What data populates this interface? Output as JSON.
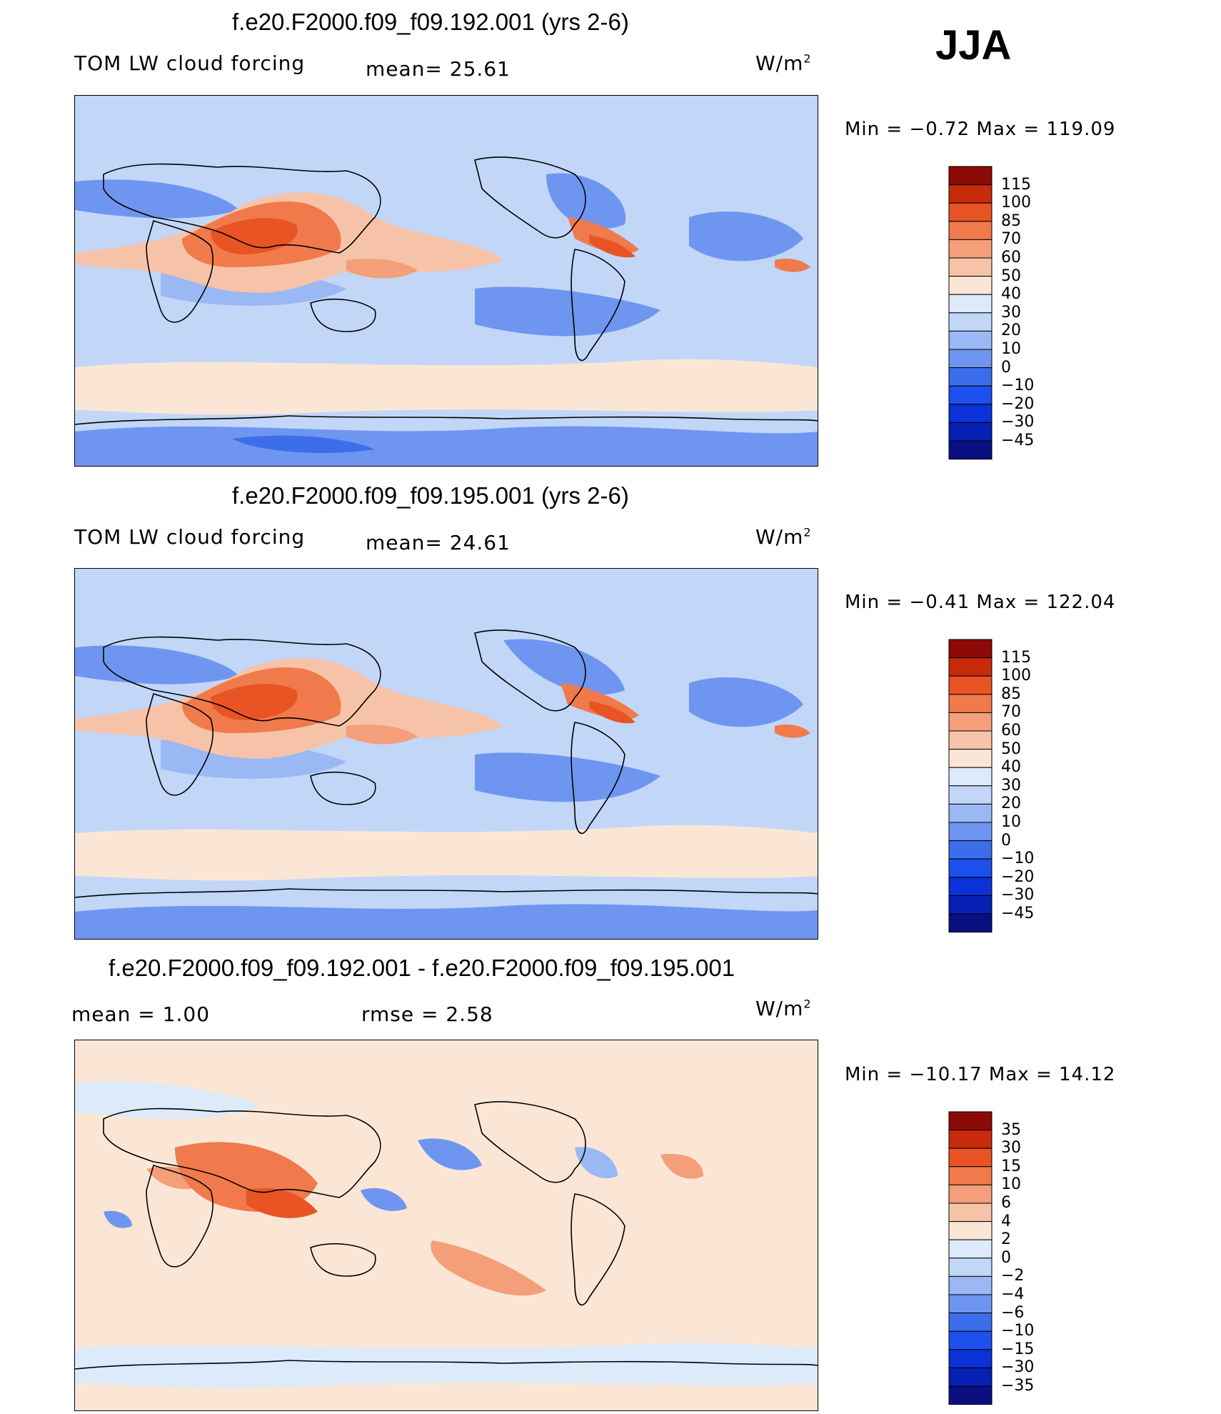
{
  "season": "JJA",
  "panels": [
    {
      "title": "f.e20.F2000.f09_f09.192.001 (yrs 2-6)",
      "variable": "TOM LW cloud forcing",
      "stat_text": "mean=   25.61",
      "units_base": "W/m",
      "units_sup": "2",
      "minmax": "Min =   −0.72  Max  =  119.09",
      "colorbar_labels": [
        "115",
        "100",
        "85",
        "70",
        "60",
        "50",
        "40",
        "30",
        "20",
        "10",
        "0",
        "−10",
        "−20",
        "−30",
        "−45"
      ]
    },
    {
      "title": "f.e20.F2000.f09_f09.195.001 (yrs 2-6)",
      "variable": "TOM LW cloud forcing",
      "stat_text": "mean=   24.61",
      "units_base": "W/m",
      "units_sup": "2",
      "minmax": "Min =   −0.41  Max  =  122.04",
      "colorbar_labels": [
        "115",
        "100",
        "85",
        "70",
        "60",
        "50",
        "40",
        "30",
        "20",
        "10",
        "0",
        "−10",
        "−20",
        "−30",
        "−45"
      ]
    },
    {
      "title": "f.e20.F2000.f09_f09.192.001 - f.e20.F2000.f09_f09.195.001",
      "mean_text": "mean  =     1.00",
      "rmse_text": "rmse  =     2.58",
      "units_base": "W/m",
      "units_sup": "2",
      "minmax": "Min  = −10.17  Max  =    14.12",
      "colorbar_labels": [
        "35",
        "30",
        "15",
        "10",
        "6",
        "4",
        "2",
        "0",
        "−2",
        "−4",
        "−6",
        "−10",
        "−15",
        "−30",
        "−35"
      ]
    }
  ],
  "colors": {
    "abs_scale": [
      "#0a0f80",
      "#0620b4",
      "#0a32d8",
      "#1e50ee",
      "#3c6eec",
      "#6e96f0",
      "#9ab8f4",
      "#c2d6f8",
      "#dceafa",
      "#fbe6d6",
      "#f7c3a8",
      "#f49e7a",
      "#f07a4c",
      "#e85424",
      "#c82a0c",
      "#8c0a06"
    ],
    "diff_scale": [
      "#0a0f80",
      "#0620b4",
      "#0a32d8",
      "#1e50ee",
      "#3c6eec",
      "#6e96f0",
      "#9ab8f4",
      "#c2d6f8",
      "#dceafa",
      "#fbe6d6",
      "#f7c3a8",
      "#f49e7a",
      "#f07a4c",
      "#e85424",
      "#c82a0c",
      "#8c0a06"
    ],
    "map_background_abs": "#c2d6f8",
    "map_background_diff": "#fbe6d6",
    "coastline": "#000000"
  },
  "chart_data": [
    {
      "type": "heatmap",
      "title": "f.e20.F2000.f09_f09.192.001 (yrs 2-6)",
      "variable": "TOM LW cloud forcing",
      "units": "W/m2",
      "mean": 25.61,
      "min": -0.72,
      "max": 119.09,
      "levels": [
        -45,
        -30,
        -20,
        -10,
        0,
        10,
        20,
        30,
        40,
        50,
        60,
        70,
        85,
        100,
        115
      ]
    },
    {
      "type": "heatmap",
      "title": "f.e20.F2000.f09_f09.195.001 (yrs 2-6)",
      "variable": "TOM LW cloud forcing",
      "units": "W/m2",
      "mean": 24.61,
      "min": -0.41,
      "max": 122.04,
      "levels": [
        -45,
        -30,
        -20,
        -10,
        0,
        10,
        20,
        30,
        40,
        50,
        60,
        70,
        85,
        100,
        115
      ]
    },
    {
      "type": "heatmap",
      "title": "f.e20.F2000.f09_f09.192.001 - f.e20.F2000.f09_f09.195.001",
      "units": "W/m2",
      "mean": 1.0,
      "rmse": 2.58,
      "min": -10.17,
      "max": 14.12,
      "levels": [
        -35,
        -30,
        -15,
        -10,
        -6,
        -4,
        -2,
        0,
        2,
        4,
        6,
        10,
        15,
        30,
        35
      ]
    }
  ]
}
